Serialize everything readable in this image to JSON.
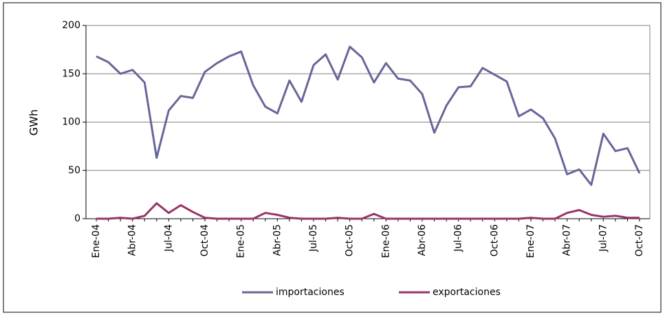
{
  "chart_data": {
    "type": "line",
    "y_label": "GWh",
    "categories": [
      "Ene-04",
      null,
      null,
      "Abr-04",
      null,
      null,
      "Jul-04",
      null,
      null,
      "Oct-04",
      null,
      null,
      "Ene-05",
      null,
      null,
      "Abr-05",
      null,
      null,
      "Jul-05",
      null,
      null,
      "Oct-05",
      null,
      null,
      "Ene-06",
      null,
      null,
      "Abr-06",
      null,
      null,
      "Jul-06",
      null,
      null,
      "Oct-06",
      null,
      null,
      "Ene-07",
      null,
      null,
      "Abr-07",
      null,
      null,
      "Jul-07",
      null,
      null,
      "Oct-07"
    ],
    "series": [
      {
        "name": "importaciones",
        "color": "#666699",
        "values": [
          168,
          162,
          150,
          154,
          141,
          63,
          112,
          127,
          125,
          152,
          161,
          168,
          173,
          138,
          116,
          109,
          143,
          121,
          159,
          170,
          144,
          178,
          167,
          141,
          161,
          145,
          143,
          129,
          89,
          117,
          136,
          137,
          156,
          149,
          142,
          106,
          113,
          104,
          83,
          46,
          51,
          35,
          88,
          70,
          73,
          47
        ]
      },
      {
        "name": "exportaciones",
        "color": "#993366",
        "values": [
          0,
          0,
          1,
          0,
          3,
          16,
          6,
          14,
          7,
          1,
          0,
          0,
          0,
          0,
          6,
          4,
          1,
          0,
          0,
          0,
          1,
          0,
          0,
          5,
          0,
          0,
          0,
          0,
          0,
          0,
          0,
          0,
          0,
          0,
          0,
          0,
          1,
          0,
          0,
          6,
          9,
          4,
          2,
          3,
          1,
          1
        ]
      }
    ],
    "ylim": [
      0,
      200
    ],
    "yticks": [
      0,
      50,
      100,
      150,
      200
    ],
    "grid": true
  }
}
